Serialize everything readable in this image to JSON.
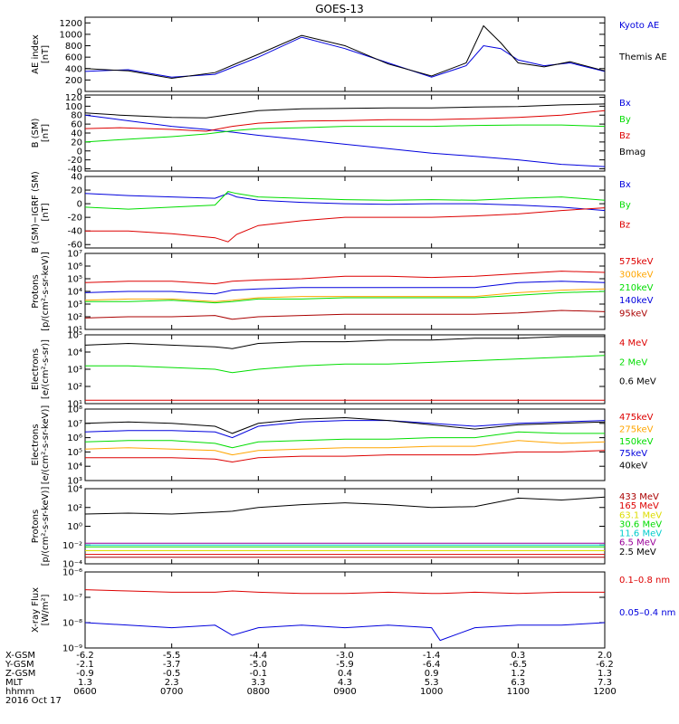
{
  "title": "GOES-13",
  "date": "2016 Oct 17",
  "colors": {
    "black": "#000000",
    "blue": "#0000dd",
    "green": "#00dd00",
    "red": "#dd0000",
    "darkred": "#aa0000",
    "orange": "#ffa500",
    "yellow": "#dddd00",
    "cyan": "#00cccc",
    "purple": "#990099",
    "axis": "#000000"
  },
  "chart_data": [
    {
      "type": "line",
      "id": "ae",
      "ylabel": "AE index\n[nT]",
      "scale": "linear",
      "ylim": [
        0,
        1300
      ],
      "ticks": [
        0,
        200,
        400,
        600,
        800,
        1000,
        1200
      ],
      "tick_labels": [
        "0",
        "200",
        "400",
        "600",
        "800",
        "1000",
        "1200"
      ],
      "x": [
        6.0,
        6.5,
        7.0,
        7.5,
        8.0,
        8.5,
        9.0,
        9.5,
        10.0,
        10.4,
        10.6,
        10.8,
        11.0,
        11.3,
        11.6,
        12.0
      ],
      "series": [
        {
          "name": "Kyoto AE",
          "color": "blue",
          "values": [
            350,
            380,
            250,
            300,
            600,
            950,
            750,
            500,
            250,
            450,
            800,
            750,
            550,
            450,
            500,
            350
          ]
        },
        {
          "name": "Themis AE",
          "color": "black",
          "values": [
            400,
            360,
            230,
            330,
            650,
            980,
            800,
            480,
            270,
            500,
            1150,
            850,
            500,
            430,
            520,
            360
          ]
        }
      ]
    },
    {
      "type": "line",
      "id": "bsm",
      "ylabel": "B (SM)\n[nT]",
      "scale": "linear",
      "ylim": [
        -45,
        125
      ],
      "ticks": [
        -40,
        -20,
        0,
        20,
        40,
        60,
        80,
        100,
        120
      ],
      "tick_labels": [
        "-40",
        "-20",
        "0",
        "20",
        "40",
        "60",
        "80",
        "100",
        "120"
      ],
      "x": [
        6.0,
        6.4,
        7.0,
        7.4,
        7.7,
        8.0,
        8.5,
        9.0,
        9.5,
        10.0,
        10.5,
        11.0,
        11.5,
        12.0
      ],
      "series": [
        {
          "name": "Bx",
          "color": "blue",
          "values": [
            80,
            70,
            55,
            48,
            42,
            35,
            25,
            15,
            5,
            -5,
            -12,
            -20,
            -30,
            -35
          ]
        },
        {
          "name": "By",
          "color": "green",
          "values": [
            20,
            25,
            32,
            38,
            45,
            50,
            52,
            55,
            55,
            55,
            57,
            58,
            58,
            55
          ]
        },
        {
          "name": "Bz",
          "color": "red",
          "values": [
            50,
            52,
            48,
            44,
            55,
            62,
            67,
            68,
            70,
            70,
            72,
            75,
            80,
            90
          ]
        },
        {
          "name": "Bmag",
          "color": "black",
          "values": [
            85,
            80,
            75,
            74,
            82,
            90,
            94,
            95,
            96,
            96,
            98,
            99,
            103,
            105
          ]
        }
      ]
    },
    {
      "type": "line",
      "id": "bdiff",
      "ylabel": "B (SM)−IGRF (SM)\n[nT]",
      "scale": "linear",
      "ylim": [
        -65,
        40
      ],
      "ticks": [
        -60,
        -40,
        -20,
        0,
        20,
        40
      ],
      "tick_labels": [
        "-60",
        "-40",
        "-20",
        "0",
        "20",
        "40"
      ],
      "x": [
        6.0,
        6.5,
        7.0,
        7.5,
        7.65,
        7.75,
        8.0,
        8.5,
        9.0,
        9.5,
        10.0,
        10.5,
        11.0,
        11.5,
        12.0
      ],
      "series": [
        {
          "name": "Bx",
          "color": "blue",
          "values": [
            15,
            12,
            10,
            8,
            15,
            10,
            5,
            2,
            0,
            -1,
            0,
            0,
            -2,
            -5,
            -10
          ]
        },
        {
          "name": "By",
          "color": "green",
          "values": [
            -5,
            -8,
            -5,
            -2,
            18,
            15,
            10,
            8,
            6,
            5,
            6,
            5,
            8,
            10,
            5
          ]
        },
        {
          "name": "Bz",
          "color": "red",
          "values": [
            -40,
            -40,
            -44,
            -50,
            -56,
            -45,
            -32,
            -25,
            -20,
            -20,
            -20,
            -18,
            -15,
            -10,
            -6
          ]
        }
      ]
    },
    {
      "type": "line",
      "id": "protons",
      "ylabel": "Protons\n[p/(cm²-s-sr-keV)]",
      "scale": "log",
      "ylim": [
        1,
        7
      ],
      "ticks": [
        1,
        2,
        3,
        4,
        5,
        6,
        7
      ],
      "tick_labels": [
        "10¹",
        "10²",
        "10³",
        "10⁴",
        "10⁵",
        "10⁶",
        "10⁷"
      ],
      "x": [
        6.0,
        6.5,
        7.0,
        7.5,
        7.7,
        8.0,
        8.5,
        9.0,
        9.5,
        10.0,
        10.5,
        11.0,
        11.5,
        12.0
      ],
      "series": [
        {
          "name": "575keV",
          "color": "red",
          "values": [
            4.7,
            4.8,
            4.8,
            4.6,
            4.8,
            4.9,
            5.0,
            5.2,
            5.2,
            5.1,
            5.2,
            5.4,
            5.6,
            5.5
          ]
        },
        {
          "name": "300keV",
          "color": "orange",
          "values": [
            3.3,
            3.4,
            3.4,
            3.2,
            3.3,
            3.5,
            3.6,
            3.6,
            3.6,
            3.6,
            3.6,
            3.9,
            4.1,
            4.2
          ]
        },
        {
          "name": "210keV",
          "color": "green",
          "values": [
            3.2,
            3.2,
            3.3,
            3.1,
            3.2,
            3.4,
            3.4,
            3.5,
            3.5,
            3.5,
            3.5,
            3.7,
            3.9,
            4.0
          ]
        },
        {
          "name": "140keV",
          "color": "blue",
          "values": [
            3.9,
            4.0,
            4.0,
            3.8,
            4.1,
            4.2,
            4.3,
            4.3,
            4.3,
            4.3,
            4.3,
            4.7,
            4.8,
            4.7
          ]
        },
        {
          "name": "95keV",
          "color": "darkred",
          "values": [
            1.9,
            2.0,
            2.0,
            2.1,
            1.8,
            2.0,
            2.1,
            2.2,
            2.2,
            2.2,
            2.2,
            2.3,
            2.5,
            2.4
          ]
        }
      ]
    },
    {
      "type": "line",
      "id": "electrons1",
      "ylabel": "Electrons\n[e/(cm²-s-sr)]",
      "scale": "log",
      "ylim": [
        1,
        5
      ],
      "ticks": [
        1,
        2,
        3,
        4,
        5
      ],
      "tick_labels": [
        "10¹",
        "10²",
        "10³",
        "10⁴",
        "10⁵"
      ],
      "x": [
        6.0,
        6.5,
        7.0,
        7.5,
        7.7,
        8.0,
        8.5,
        9.0,
        9.5,
        10.0,
        10.5,
        11.0,
        11.5,
        12.0
      ],
      "series": [
        {
          "name": "4 MeV",
          "color": "red",
          "values": [
            1.2,
            1.2,
            1.2,
            1.2,
            1.2,
            1.2,
            1.2,
            1.2,
            1.2,
            1.2,
            1.2,
            1.2,
            1.2,
            1.2
          ]
        },
        {
          "name": "2 MeV",
          "color": "green",
          "values": [
            3.2,
            3.2,
            3.1,
            3.0,
            2.8,
            3.0,
            3.2,
            3.3,
            3.3,
            3.4,
            3.5,
            3.6,
            3.7,
            3.8
          ]
        },
        {
          "name": "0.6 MeV",
          "color": "black",
          "values": [
            4.4,
            4.5,
            4.4,
            4.3,
            4.2,
            4.5,
            4.6,
            4.6,
            4.7,
            4.7,
            4.8,
            4.8,
            4.9,
            4.9
          ]
        }
      ]
    },
    {
      "type": "line",
      "id": "electrons2",
      "ylabel": "Electrons\n[e/(cm²-s-sr-keV)]",
      "scale": "log",
      "ylim": [
        3,
        8
      ],
      "ticks": [
        3,
        4,
        5,
        6,
        7,
        8
      ],
      "tick_labels": [
        "10³",
        "10⁴",
        "10⁵",
        "10⁶",
        "10⁷",
        "10⁸"
      ],
      "x": [
        6.0,
        6.5,
        7.0,
        7.5,
        7.7,
        8.0,
        8.5,
        9.0,
        9.5,
        10.0,
        10.5,
        11.0,
        11.5,
        12.0
      ],
      "series": [
        {
          "name": "475keV",
          "color": "red",
          "values": [
            4.6,
            4.6,
            4.6,
            4.5,
            4.3,
            4.6,
            4.7,
            4.7,
            4.8,
            4.8,
            4.8,
            5.0,
            5.0,
            5.1
          ]
        },
        {
          "name": "275keV",
          "color": "orange",
          "values": [
            5.2,
            5.3,
            5.2,
            5.1,
            4.8,
            5.1,
            5.2,
            5.3,
            5.3,
            5.4,
            5.4,
            5.8,
            5.6,
            5.7
          ]
        },
        {
          "name": "150keV",
          "color": "green",
          "values": [
            5.7,
            5.8,
            5.8,
            5.6,
            5.3,
            5.7,
            5.8,
            5.9,
            5.9,
            6.0,
            6.0,
            6.4,
            6.3,
            6.3
          ]
        },
        {
          "name": "75keV",
          "color": "blue",
          "values": [
            6.4,
            6.5,
            6.5,
            6.4,
            6.0,
            6.8,
            7.1,
            7.2,
            7.2,
            7.0,
            6.8,
            7.0,
            7.1,
            7.2
          ]
        },
        {
          "name": "40keV",
          "color": "black",
          "values": [
            7.0,
            7.1,
            7.0,
            6.8,
            6.3,
            7.0,
            7.3,
            7.4,
            7.2,
            6.9,
            6.6,
            6.9,
            7.0,
            7.1
          ]
        }
      ]
    },
    {
      "type": "line",
      "id": "protons2",
      "ylabel": "Protons\n[p/(cm²-s-sr-keV)]",
      "scale": "log",
      "ylim": [
        -4,
        4
      ],
      "ticks": [
        -4,
        -2,
        0,
        2,
        4
      ],
      "tick_labels": [
        "10⁻⁴",
        "10⁻²",
        "10⁰",
        "10²",
        "10⁴"
      ],
      "x": [
        6.0,
        6.5,
        7.0,
        7.5,
        7.7,
        8.0,
        8.5,
        9.0,
        9.5,
        10.0,
        10.5,
        11.0,
        11.5,
        12.0
      ],
      "series": [
        {
          "name": "433 MeV",
          "color": "darkred",
          "values": [
            -3.3,
            -3.3,
            -3.3,
            -3.3,
            -3.3,
            -3.3,
            -3.3,
            -3.3,
            -3.3,
            -3.3,
            -3.3,
            -3.3,
            -3.3,
            -3.3
          ]
        },
        {
          "name": "165 MeV",
          "color": "red",
          "values": [
            -3.0,
            -3.0,
            -3.0,
            -3.0,
            -3.0,
            -3.0,
            -3.0,
            -3.0,
            -3.0,
            -3.0,
            -3.0,
            -3.0,
            -3.0,
            -3.0
          ]
        },
        {
          "name": "63.1 MeV",
          "color": "yellow",
          "values": [
            -2.6,
            -2.6,
            -2.6,
            -2.6,
            -2.6,
            -2.6,
            -2.6,
            -2.6,
            -2.6,
            -2.6,
            -2.6,
            -2.6,
            -2.6,
            -2.6
          ]
        },
        {
          "name": "30.6 MeV",
          "color": "green",
          "values": [
            -2.2,
            -2.2,
            -2.2,
            -2.2,
            -2.2,
            -2.2,
            -2.2,
            -2.2,
            -2.2,
            -2.2,
            -2.2,
            -2.2,
            -2.2,
            -2.2
          ]
        },
        {
          "name": "11.6 MeV",
          "color": "cyan",
          "values": [
            -2.0,
            -2.0,
            -2.0,
            -2.0,
            -2.0,
            -2.0,
            -2.0,
            -2.0,
            -2.0,
            -2.0,
            -2.0,
            -2.0,
            -2.0,
            -2.0
          ]
        },
        {
          "name": "6.5 MeV",
          "color": "purple",
          "values": [
            -1.8,
            -1.8,
            -1.8,
            -1.8,
            -1.8,
            -1.8,
            -1.8,
            -1.8,
            -1.8,
            -1.8,
            -1.8,
            -1.8,
            -1.8,
            -1.8
          ]
        },
        {
          "name": "2.5 MeV",
          "color": "black",
          "values": [
            1.3,
            1.4,
            1.3,
            1.5,
            1.6,
            2.0,
            2.3,
            2.5,
            2.3,
            2.0,
            2.1,
            3.0,
            2.8,
            3.1
          ]
        }
      ]
    },
    {
      "type": "line",
      "id": "xray",
      "ylabel": "X-ray Flux\n[W/m²]",
      "scale": "log",
      "ylim": [
        -9,
        -6
      ],
      "ticks": [
        -9,
        -8,
        -7,
        -6
      ],
      "tick_labels": [
        "10⁻⁹",
        "10⁻⁸",
        "10⁻⁷",
        "10⁻⁶"
      ],
      "x": [
        6.0,
        6.5,
        7.0,
        7.5,
        7.7,
        8.0,
        8.5,
        9.0,
        9.5,
        10.0,
        10.1,
        10.5,
        11.0,
        11.5,
        12.0
      ],
      "series": [
        {
          "name": "0.1–0.8 nm",
          "color": "red",
          "values": [
            -6.7,
            -6.75,
            -6.8,
            -6.8,
            -6.75,
            -6.8,
            -6.85,
            -6.85,
            -6.8,
            -6.85,
            -6.85,
            -6.8,
            -6.85,
            -6.8,
            -6.8
          ]
        },
        {
          "name": "0.05–0.4 nm",
          "color": "blue",
          "values": [
            -8.0,
            -8.1,
            -8.2,
            -8.1,
            -8.5,
            -8.2,
            -8.1,
            -8.2,
            -8.1,
            -8.2,
            -8.7,
            -8.2,
            -8.1,
            -8.1,
            -8.0
          ]
        }
      ]
    }
  ],
  "x_axis": {
    "rows": [
      {
        "label": "X-GSM",
        "values": [
          "-6.2",
          "-5.5",
          "-4.4",
          "-3.0",
          "-1.4",
          "0.3",
          "2.0"
        ]
      },
      {
        "label": "Y-GSM",
        "values": [
          "-2.1",
          "-3.7",
          "-5.0",
          "-5.9",
          "-6.4",
          "-6.5",
          "-6.2"
        ]
      },
      {
        "label": "Z-GSM",
        "values": [
          "-0.9",
          "-0.5",
          "-0.1",
          "0.4",
          "0.9",
          "1.2",
          "1.3"
        ]
      },
      {
        "label": "MLT",
        "values": [
          "1.3",
          "2.3",
          "3.3",
          "4.3",
          "5.3",
          "6.3",
          "7.3"
        ]
      },
      {
        "label": "hhmm",
        "values": [
          "0600",
          "0700",
          "0800",
          "0900",
          "1000",
          "1100",
          "1200"
        ]
      }
    ],
    "xlim": [
      6,
      12
    ]
  }
}
